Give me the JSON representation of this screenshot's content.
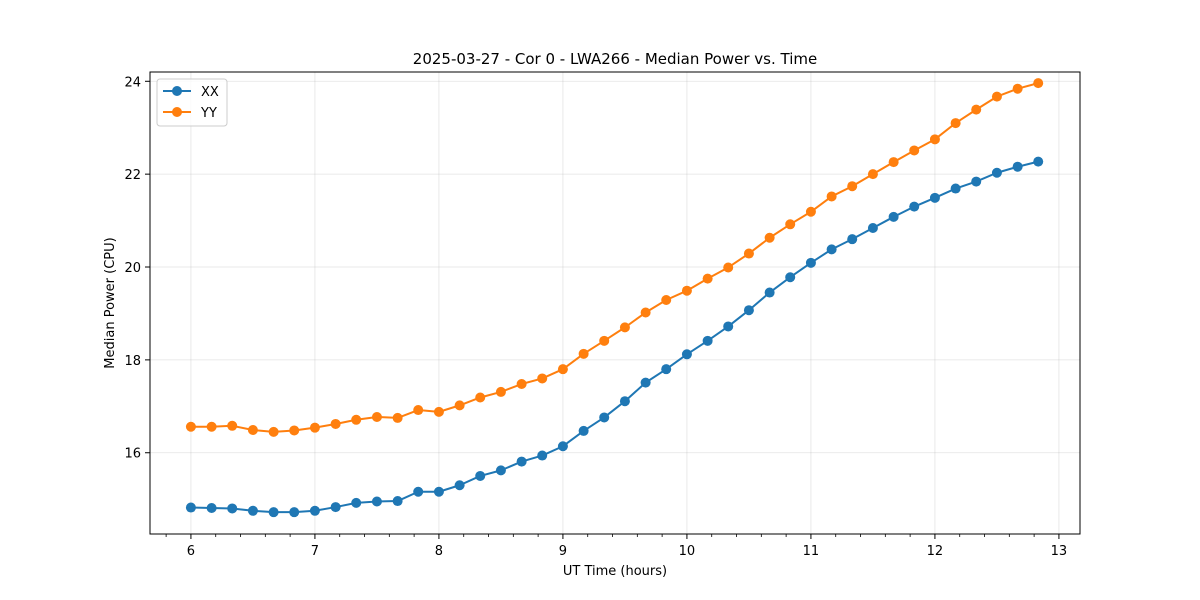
{
  "chart_data": {
    "type": "line",
    "title": "2025-03-27 - Cor 0 - LWA266 - Median Power vs. Time",
    "xlabel": "UT Time (hours)",
    "ylabel": "Median Power (CPU)",
    "xlim": [
      5.67,
      13.17
    ],
    "ylim": [
      14.25,
      24.2
    ],
    "xticks": [
      6,
      7,
      8,
      9,
      10,
      11,
      12,
      13
    ],
    "yticks": [
      16,
      18,
      20,
      22,
      24
    ],
    "grid": true,
    "legend_position": "top-left",
    "x": [
      6.0,
      6.167,
      6.333,
      6.5,
      6.667,
      6.833,
      7.0,
      7.167,
      7.333,
      7.5,
      7.667,
      7.833,
      8.0,
      8.167,
      8.333,
      8.5,
      8.667,
      8.833,
      9.0,
      9.167,
      9.333,
      9.5,
      9.667,
      9.833,
      10.0,
      10.167,
      10.333,
      10.5,
      10.667,
      10.833,
      11.0,
      11.167,
      11.333,
      11.5,
      11.667,
      11.833,
      12.0,
      12.167,
      12.333,
      12.5,
      12.667,
      12.833
    ],
    "series": [
      {
        "name": "XX",
        "color": "#1f77b4",
        "values": [
          14.82,
          14.81,
          14.8,
          14.75,
          14.72,
          14.72,
          14.75,
          14.83,
          14.92,
          14.95,
          14.96,
          15.16,
          15.16,
          15.3,
          15.5,
          15.62,
          15.81,
          15.94,
          16.14,
          16.47,
          16.76,
          17.11,
          17.51,
          17.8,
          18.12,
          18.41,
          18.72,
          19.07,
          19.45,
          19.78,
          20.09,
          20.38,
          20.6,
          20.84,
          21.08,
          21.3,
          21.49,
          21.69,
          21.84,
          22.03,
          22.16,
          22.27
        ]
      },
      {
        "name": "YY",
        "color": "#ff7f0e",
        "values": [
          16.56,
          16.56,
          16.58,
          16.49,
          16.45,
          16.48,
          16.54,
          16.62,
          16.71,
          16.77,
          16.75,
          16.92,
          16.88,
          17.02,
          17.19,
          17.31,
          17.48,
          17.6,
          17.8,
          18.13,
          18.41,
          18.7,
          19.02,
          19.29,
          19.49,
          19.75,
          19.99,
          20.29,
          20.63,
          20.92,
          21.19,
          21.52,
          21.74,
          22.0,
          22.26,
          22.51,
          22.75,
          23.1,
          23.39,
          23.67,
          23.84,
          23.96
        ]
      }
    ]
  }
}
